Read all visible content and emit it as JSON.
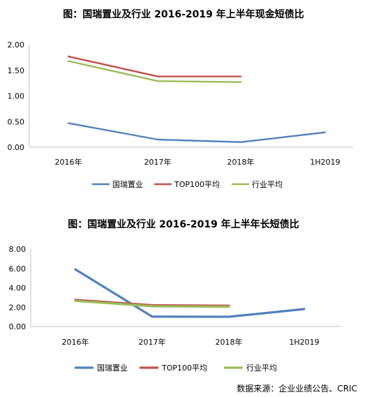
{
  "chart_data": [
    {
      "type": "line",
      "title": "图：国瑞置业及行业 2016-2019 年上半年现金短债比",
      "categories": [
        "2016年",
        "2017年",
        "2018年",
        "1H2019"
      ],
      "ylim": [
        0,
        2.0
      ],
      "yticks": [
        "0.00",
        "0.50",
        "1.00",
        "1.50",
        "2.00"
      ],
      "grid": false,
      "legend_position": "bottom",
      "series": [
        {
          "name": "国瑞置业",
          "color": "#4F81BD",
          "values": [
            0.47,
            0.15,
            0.1,
            0.29
          ]
        },
        {
          "name": "TOP100平均",
          "color": "#C0504D",
          "values": [
            1.77,
            1.38,
            1.38,
            null
          ]
        },
        {
          "name": "行业平均",
          "color": "#9BBB59",
          "values": [
            1.68,
            1.29,
            1.27,
            null
          ]
        }
      ]
    },
    {
      "type": "line",
      "title": "图：国瑞置业及行业 2016-2019 年上半年长短债比",
      "categories": [
        "2016年",
        "2017年",
        "2018年",
        "1H2019"
      ],
      "ylim": [
        0,
        8.0
      ],
      "yticks": [
        "0.00",
        "2.00",
        "4.00",
        "6.00",
        "8.00"
      ],
      "grid": false,
      "legend_position": "bottom",
      "series": [
        {
          "name": "国瑞置业",
          "color": "#4F81BD",
          "values": [
            5.9,
            1.02,
            1.01,
            1.8
          ]
        },
        {
          "name": "TOP100平均",
          "color": "#C0504D",
          "values": [
            2.75,
            2.2,
            2.15,
            null
          ]
        },
        {
          "name": "行业平均",
          "color": "#9BBB59",
          "values": [
            2.65,
            2.1,
            2.05,
            null
          ]
        }
      ]
    }
  ],
  "source": "数据来源：企业业绩公告、CRIC"
}
